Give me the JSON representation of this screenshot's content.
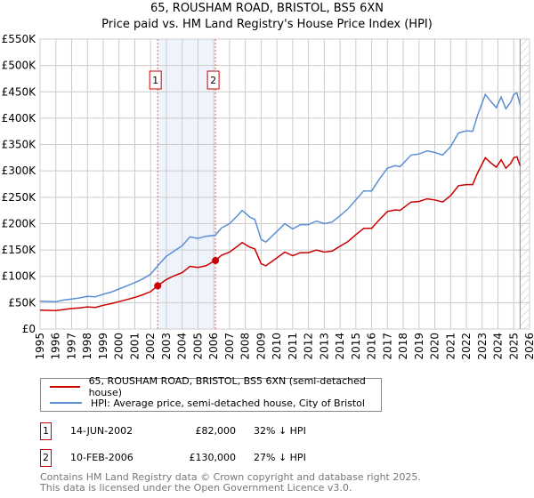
{
  "chart_data": {
    "type": "line",
    "title": "65, ROUSHAM ROAD, BRISTOL, BS5 6XN",
    "subtitle": "Price paid vs. HM Land Registry's House Price Index (HPI)",
    "xlim": [
      1995,
      2026
    ],
    "ylim": [
      0,
      550000
    ],
    "yticks": [
      {
        "v": 0,
        "l": "£0"
      },
      {
        "v": 50000,
        "l": "£50K"
      },
      {
        "v": 100000,
        "l": "£100K"
      },
      {
        "v": 150000,
        "l": "£150K"
      },
      {
        "v": 200000,
        "l": "£200K"
      },
      {
        "v": 250000,
        "l": "£250K"
      },
      {
        "v": 300000,
        "l": "£300K"
      },
      {
        "v": 350000,
        "l": "£350K"
      },
      {
        "v": 400000,
        "l": "£400K"
      },
      {
        "v": 450000,
        "l": "£450K"
      },
      {
        "v": 500000,
        "l": "£500K"
      },
      {
        "v": 550000,
        "l": "£550K"
      }
    ],
    "xticks": [
      "1995",
      "1996",
      "1997",
      "1998",
      "1999",
      "2000",
      "2001",
      "2002",
      "2003",
      "2004",
      "2005",
      "2006",
      "2007",
      "2008",
      "2009",
      "2010",
      "2011",
      "2012",
      "2013",
      "2014",
      "2015",
      "2016",
      "2017",
      "2018",
      "2019",
      "2020",
      "2021",
      "2022",
      "2023",
      "2024",
      "2025",
      "2026"
    ],
    "grid": true,
    "legend_placement": "below",
    "series": [
      {
        "name": "65, ROUSHAM ROAD, BRISTOL, BS5 6XN (semi-detached house)",
        "color": "#cc0000",
        "x": [
          1995,
          1996,
          1996.5,
          1997,
          1997.5,
          1998,
          1998.5,
          1999,
          1999.5,
          2000,
          2000.5,
          2001,
          2001.5,
          2002,
          2002.45,
          2003,
          2003.5,
          2004,
          2004.5,
          2005,
          2005.5,
          2006.1,
          2006.5,
          2007,
          2007.5,
          2007.8,
          2008.3,
          2008.6,
          2009,
          2009.3,
          2010,
          2010.5,
          2011,
          2011.5,
          2012,
          2012.5,
          2013,
          2013.5,
          2014,
          2014.5,
          2015,
          2015.5,
          2016,
          2016.5,
          2017,
          2017.5,
          2017.8,
          2018.5,
          2019,
          2019.5,
          2020,
          2020.5,
          2021,
          2021.5,
          2022,
          2022.4,
          2022.7,
          2023.2,
          2023.6,
          2023.9,
          2024.2,
          2024.5,
          2024.8,
          2025,
          2025.2,
          2025.4
        ],
        "y": [
          36,
          35,
          37,
          39,
          40,
          42,
          41,
          45,
          48,
          52,
          56,
          60,
          65,
          71,
          82,
          94,
          101,
          107,
          119,
          117,
          120,
          130,
          140,
          146,
          157,
          164,
          155,
          152,
          124,
          120,
          135,
          146,
          139,
          145,
          145,
          150,
          146,
          148,
          157,
          166,
          179,
          191,
          191,
          208,
          223,
          226,
          225,
          241,
          242,
          247,
          245,
          241,
          253,
          272,
          274,
          274,
          296,
          325,
          314,
          307,
          321,
          305,
          314,
          325,
          327,
          310
        ]
      },
      {
        "name": "HPI: Average price, semi-detached house, City of Bristol",
        "color": "#5b8fd4",
        "x": [
          1995,
          1996,
          1996.5,
          1997,
          1997.5,
          1998,
          1998.5,
          1999,
          1999.5,
          2000,
          2000.5,
          2001,
          2001.5,
          2002,
          2002.45,
          2003,
          2003.5,
          2004,
          2004.5,
          2005,
          2005.5,
          2006.1,
          2006.5,
          2007,
          2007.5,
          2007.8,
          2008.3,
          2008.6,
          2009,
          2009.3,
          2010,
          2010.5,
          2011,
          2011.5,
          2012,
          2012.5,
          2013,
          2013.5,
          2014,
          2014.5,
          2015,
          2015.5,
          2016,
          2016.5,
          2017,
          2017.5,
          2017.8,
          2018.5,
          2019,
          2019.5,
          2020,
          2020.5,
          2021,
          2021.5,
          2022,
          2022.4,
          2022.7,
          2023.2,
          2023.6,
          2023.9,
          2024.2,
          2024.5,
          2024.8,
          2025,
          2025.2,
          2025.4
        ],
        "y": [
          53,
          52,
          55,
          57,
          59,
          62,
          61,
          66,
          70,
          76,
          82,
          88,
          95,
          104,
          120,
          138,
          148,
          158,
          175,
          172,
          176,
          178,
          192,
          200,
          215,
          225,
          212,
          208,
          170,
          165,
          185,
          200,
          190,
          198,
          198,
          205,
          200,
          203,
          215,
          228,
          245,
          262,
          262,
          285,
          305,
          310,
          308,
          330,
          332,
          338,
          335,
          330,
          346,
          372,
          376,
          375,
          405,
          445,
          430,
          420,
          440,
          418,
          430,
          445,
          448,
          425
        ]
      }
    ],
    "y_unit": "thousands GBP",
    "sales": [
      {
        "n": "1",
        "x": 2002.45,
        "price": 82000,
        "date": "14-JUN-2002",
        "price_label": "£82,000",
        "delta": "32% ↓ HPI"
      },
      {
        "n": "2",
        "x": 2006.11,
        "price": 130000,
        "date": "10-FEB-2006",
        "price_label": "£130,000",
        "delta": "27% ↓ HPI"
      }
    ],
    "forecast_from": 2025.4
  },
  "footer": {
    "line1": "Contains HM Land Registry data © Crown copyright and database right 2025.",
    "line2": "This data is licensed under the Open Government Licence v3.0."
  }
}
